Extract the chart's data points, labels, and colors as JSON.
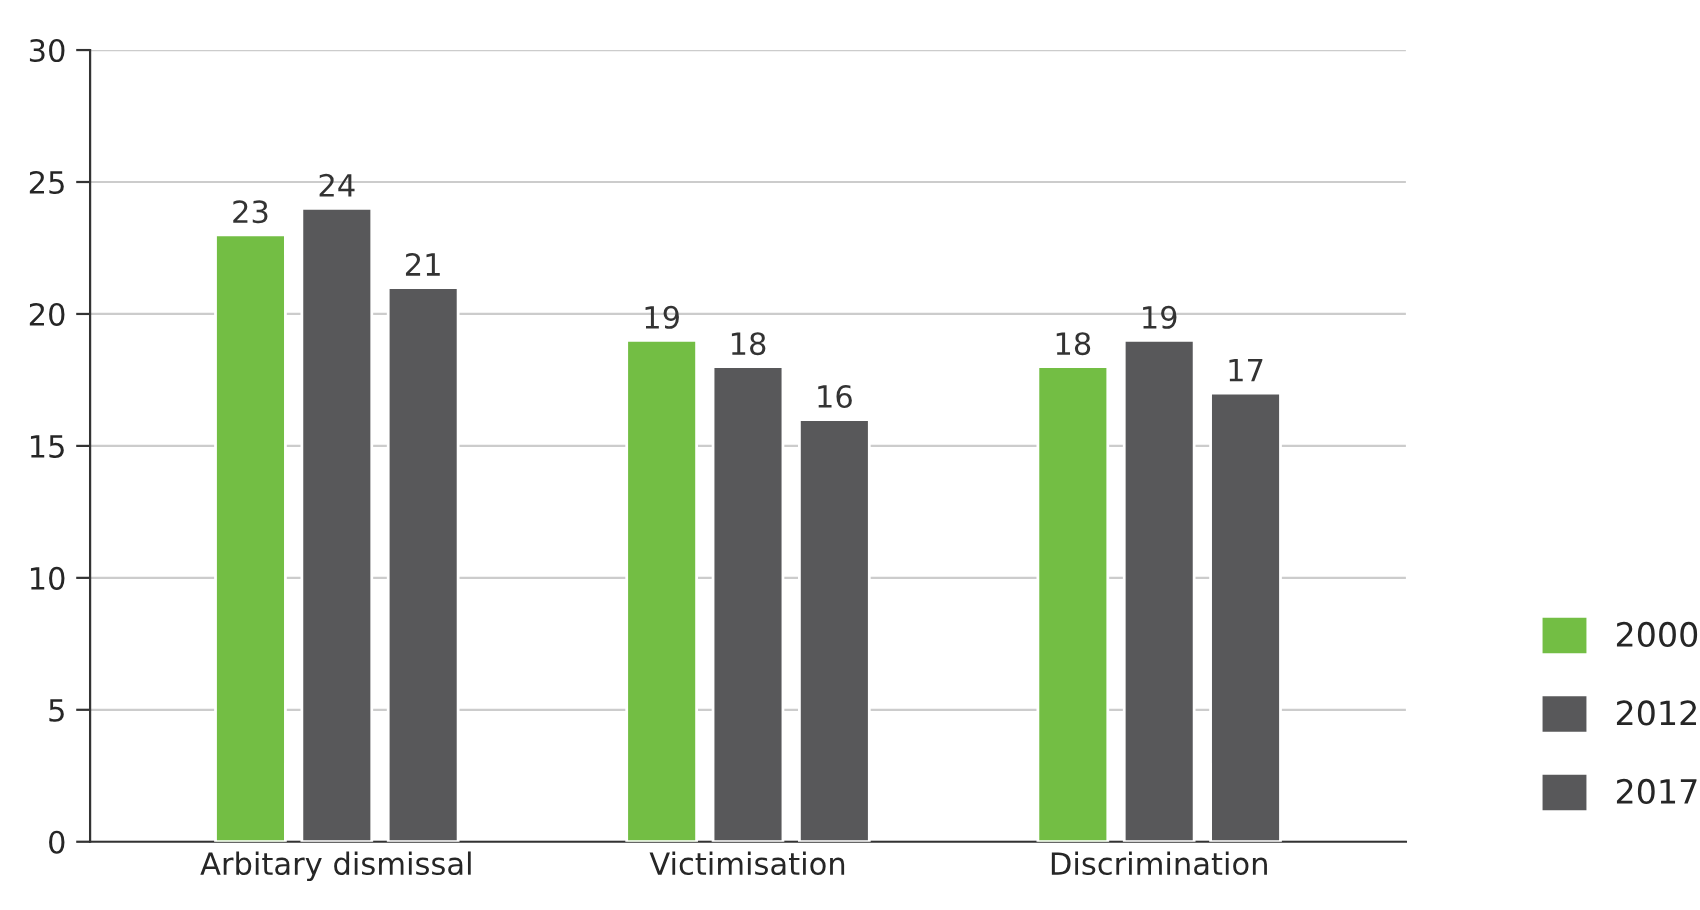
{
  "chart_data": {
    "type": "bar",
    "categories": [
      "Arbitary dismissal",
      "Victimisation",
      "Discrimination"
    ],
    "series": [
      {
        "name": "2000",
        "color": "#73be44",
        "values": [
          23,
          19,
          18
        ]
      },
      {
        "name": "2012",
        "color": "#58585a",
        "values": [
          24,
          18,
          19
        ]
      },
      {
        "name": "2017",
        "color": "#58585a",
        "values": [
          21,
          16,
          17
        ]
      }
    ],
    "ylim": [
      0,
      30
    ],
    "yticks": [
      0,
      5,
      10,
      15,
      20,
      25,
      30
    ],
    "grid": "y",
    "legend": "bottom right",
    "data_labels": true
  }
}
